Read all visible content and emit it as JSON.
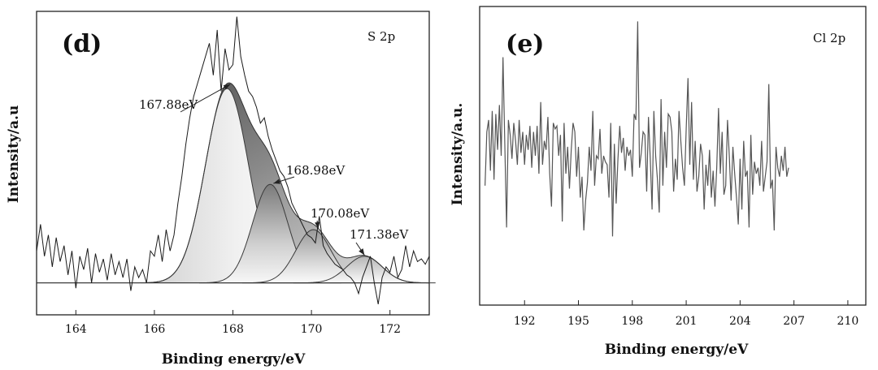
{
  "chart_data": [
    {
      "id": "d",
      "type": "line",
      "panel_label": "(d)",
      "element_label": "S 2p",
      "xlabel": "Binding energy/eV",
      "ylabel": "Intensity/a.u",
      "xlim": [
        163,
        173
      ],
      "ylim": [
        -0.12,
        1.02
      ],
      "xticks": [
        164,
        166,
        168,
        170,
        172
      ],
      "xtick_labels": [
        "164",
        "166",
        "168",
        "170",
        "172"
      ],
      "baseline": 0,
      "raw_spectrum": {
        "name": "raw",
        "x": [
          163.0,
          163.1,
          163.2,
          163.3,
          163.4,
          163.5,
          163.6,
          163.7,
          163.8,
          163.9,
          164.0,
          164.1,
          164.2,
          164.3,
          164.4,
          164.5,
          164.6,
          164.7,
          164.8,
          164.9,
          165.0,
          165.1,
          165.2,
          165.3,
          165.4,
          165.5,
          165.6,
          165.7,
          165.8,
          165.9,
          166.0,
          166.1,
          166.2,
          166.3,
          166.4,
          166.5,
          166.6,
          166.7,
          166.8,
          166.9,
          167.0,
          167.1,
          167.2,
          167.3,
          167.4,
          167.5,
          167.6,
          167.7,
          167.8,
          167.9,
          168.0,
          168.1,
          168.2,
          168.3,
          168.4,
          168.5,
          168.6,
          168.7,
          168.8,
          168.9,
          169.0,
          169.1,
          169.2,
          169.3,
          169.4,
          169.5,
          169.6,
          169.7,
          169.8,
          169.9,
          170.0,
          170.1,
          170.2,
          170.3,
          170.4,
          170.5,
          170.6,
          170.7,
          170.8,
          170.9,
          171.0,
          171.1,
          171.2,
          171.3,
          171.4,
          171.5,
          171.6,
          171.7,
          171.8,
          171.9,
          172.0,
          172.1,
          172.2,
          172.3,
          172.4,
          172.5,
          172.6,
          172.7,
          172.8,
          172.9,
          173.0
        ],
        "y": [
          0.12,
          0.22,
          0.1,
          0.18,
          0.06,
          0.17,
          0.08,
          0.14,
          0.03,
          0.12,
          -0.02,
          0.1,
          0.05,
          0.13,
          0.0,
          0.11,
          0.04,
          0.09,
          0.01,
          0.11,
          0.03,
          0.08,
          0.02,
          0.09,
          -0.03,
          0.06,
          0.02,
          0.05,
          0.0,
          0.12,
          0.1,
          0.18,
          0.08,
          0.2,
          0.12,
          0.18,
          0.3,
          0.4,
          0.52,
          0.62,
          0.7,
          0.75,
          0.8,
          0.85,
          0.9,
          0.78,
          0.95,
          0.72,
          0.88,
          0.8,
          0.82,
          1.0,
          0.85,
          0.78,
          0.72,
          0.7,
          0.66,
          0.6,
          0.62,
          0.55,
          0.5,
          0.46,
          0.42,
          0.4,
          0.36,
          0.3,
          0.27,
          0.24,
          0.21,
          0.18,
          0.17,
          0.15,
          0.25,
          0.14,
          0.11,
          0.09,
          0.07,
          0.06,
          0.05,
          0.03,
          0.02,
          0.0,
          -0.04,
          0.02,
          0.06,
          0.1,
          0.0,
          -0.08,
          0.02,
          0.06,
          0.04,
          0.1,
          0.02,
          0.05,
          0.14,
          0.06,
          0.12,
          0.08,
          0.09,
          0.07,
          0.1
        ]
      },
      "peaks": [
        {
          "label": "167.88eV",
          "center": 167.85,
          "height": 0.73,
          "sigma": 0.55
        },
        {
          "label": "168.98eV",
          "center": 168.95,
          "height": 0.37,
          "sigma": 0.45
        },
        {
          "label": "170.08eV",
          "center": 170.05,
          "height": 0.2,
          "sigma": 0.45
        },
        {
          "label": "171.38eV",
          "center": 171.35,
          "height": 0.1,
          "sigma": 0.45
        }
      ],
      "envelope_note": "sum of fitted components"
    },
    {
      "id": "e",
      "type": "line",
      "panel_label": "(e)",
      "element_label": "Cl 2p",
      "xlabel": "Binding energy/eV",
      "ylabel": "Intensity/a.u.",
      "xlim": [
        189.5,
        211
      ],
      "ylim": [
        0,
        10
      ],
      "xticks": [
        192,
        195,
        198,
        201,
        204,
        207,
        210
      ],
      "xtick_labels": [
        "192",
        "195",
        "198",
        "201",
        "204",
        "207",
        "210"
      ],
      "series": [
        {
          "name": "raw",
          "x_start": 189.8,
          "x_step": 0.1,
          "values": [
            4.0,
            5.8,
            6.2,
            4.5,
            6.5,
            4.2,
            6.4,
            5.2,
            6.7,
            5.0,
            8.3,
            5.4,
            2.6,
            6.2,
            5.7,
            4.9,
            6.1,
            5.5,
            4.7,
            6.2,
            5.1,
            5.8,
            4.7,
            5.7,
            5.2,
            6.0,
            4.6,
            5.8,
            5.0,
            6.0,
            4.4,
            6.8,
            4.7,
            5.5,
            5.2,
            6.3,
            4.4,
            3.3,
            6.1,
            5.9,
            6.0,
            5.0,
            5.7,
            2.8,
            6.1,
            4.4,
            5.3,
            3.9,
            5.2,
            6.1,
            5.8,
            4.3,
            5.3,
            3.6,
            4.3,
            2.5,
            3.5,
            4.1,
            5.3,
            4.5,
            6.5,
            4.0,
            5.0,
            4.9,
            5.9,
            4.4,
            5.0,
            4.8,
            4.7,
            3.6,
            6.1,
            2.3,
            5.4,
            3.4,
            4.9,
            6.0,
            5.1,
            5.6,
            4.5,
            5.3,
            5.0,
            5.2,
            4.3,
            6.4,
            6.2,
            9.5,
            4.6,
            5.1,
            5.8,
            5.7,
            3.8,
            6.3,
            4.9,
            3.2,
            6.5,
            5.0,
            4.2,
            3.1,
            6.9,
            4.0,
            5.8,
            4.6,
            6.4,
            6.3,
            5.8,
            3.8,
            4.9,
            4.2,
            6.5,
            5.5,
            4.6,
            4.0,
            5.9,
            7.6,
            4.7,
            6.8,
            4.2,
            5.5,
            3.8,
            4.3,
            5.4,
            5.0,
            3.2,
            4.7,
            4.0,
            5.2,
            3.6,
            4.5,
            3.3,
            4.6,
            6.6,
            4.4,
            5.8,
            3.7,
            4.0,
            6.2,
            5.0,
            3.5,
            5.3,
            4.4,
            3.6,
            2.7,
            4.9,
            3.2,
            5.5,
            4.3,
            4.5,
            2.6,
            5.7,
            3.7,
            4.8,
            4.4,
            4.6,
            4.0,
            5.5,
            3.8,
            4.3,
            4.8,
            7.4,
            3.9,
            4.2,
            2.5,
            5.3,
            4.6,
            4.3,
            5.0,
            4.5,
            5.3,
            4.3,
            4.6
          ]
        }
      ]
    }
  ]
}
